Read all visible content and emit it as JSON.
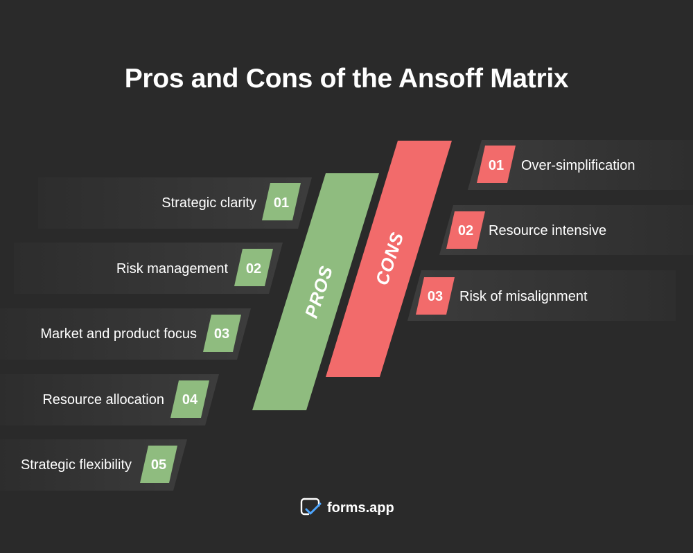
{
  "title": "Pros and Cons of the Ansoff Matrix",
  "pros": {
    "label": "PROS",
    "color": "#8fbc7f",
    "items": [
      {
        "num": "01",
        "text": "Strategic clarity"
      },
      {
        "num": "02",
        "text": "Risk management"
      },
      {
        "num": "03",
        "text": "Market and product focus"
      },
      {
        "num": "04",
        "text": "Resource allocation"
      },
      {
        "num": "05",
        "text": "Strategic flexibility"
      }
    ]
  },
  "cons": {
    "label": "CONS",
    "color": "#f26b6b",
    "items": [
      {
        "num": "01",
        "text": "Over-simplification"
      },
      {
        "num": "02",
        "text": "Resource intensive"
      },
      {
        "num": "03",
        "text": "Risk of misalignment"
      }
    ]
  },
  "footer": {
    "brand": "forms.app",
    "icon": "forms-app-logo-icon"
  },
  "colors": {
    "background": "#2a2a2a",
    "band": "#3a3a3a",
    "text": "#ffffff"
  }
}
